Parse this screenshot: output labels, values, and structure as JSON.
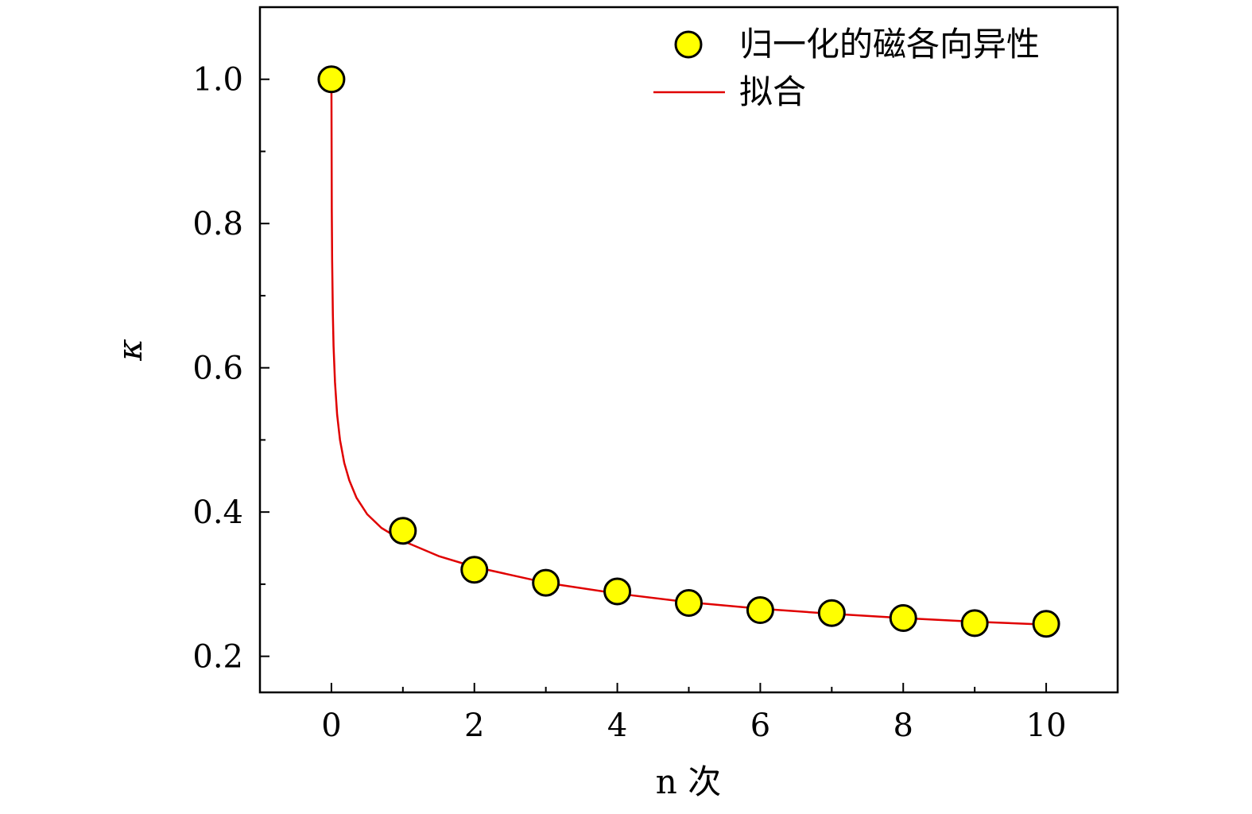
{
  "chart_data": {
    "type": "scatter",
    "title": "",
    "xlabel": "n 次",
    "ylabel": "κ",
    "xlim": [
      -1,
      11
    ],
    "ylim": [
      0.15,
      1.1
    ],
    "xticks": [
      0,
      2,
      4,
      6,
      8,
      10
    ],
    "xtick_labels": [
      "0",
      "2",
      "4",
      "6",
      "8",
      "10"
    ],
    "yticks": [
      0.2,
      0.4,
      0.6,
      0.8,
      1.0
    ],
    "ytick_labels": [
      "0.2",
      "0.4",
      "0.6",
      "0.8",
      "1.0"
    ],
    "grid": false,
    "legend_position": "top-right",
    "series": [
      {
        "name": "归一化的磁各向异性",
        "kind": "scatter",
        "color": "#ffff00",
        "edge_color": "#000000",
        "x": [
          0,
          1,
          2,
          3,
          4,
          5,
          6,
          7,
          8,
          9,
          10
        ],
        "y": [
          1.0,
          0.374,
          0.32,
          0.302,
          0.29,
          0.274,
          0.264,
          0.26,
          0.253,
          0.246,
          0.245
        ]
      },
      {
        "name": "拟合",
        "kind": "line",
        "color": "#e00000",
        "x": [
          0,
          0.005,
          0.01,
          0.02,
          0.03,
          0.05,
          0.08,
          0.12,
          0.18,
          0.25,
          0.35,
          0.5,
          0.7,
          1.0,
          1.5,
          2.0,
          3.0,
          4.0,
          5.0,
          6.0,
          7.0,
          8.0,
          9.0,
          10.0
        ],
        "y": [
          1.0,
          0.82,
          0.75,
          0.675,
          0.63,
          0.58,
          0.535,
          0.5,
          0.468,
          0.444,
          0.42,
          0.397,
          0.378,
          0.36,
          0.339,
          0.324,
          0.302,
          0.287,
          0.275,
          0.266,
          0.259,
          0.253,
          0.248,
          0.244
        ]
      }
    ]
  }
}
